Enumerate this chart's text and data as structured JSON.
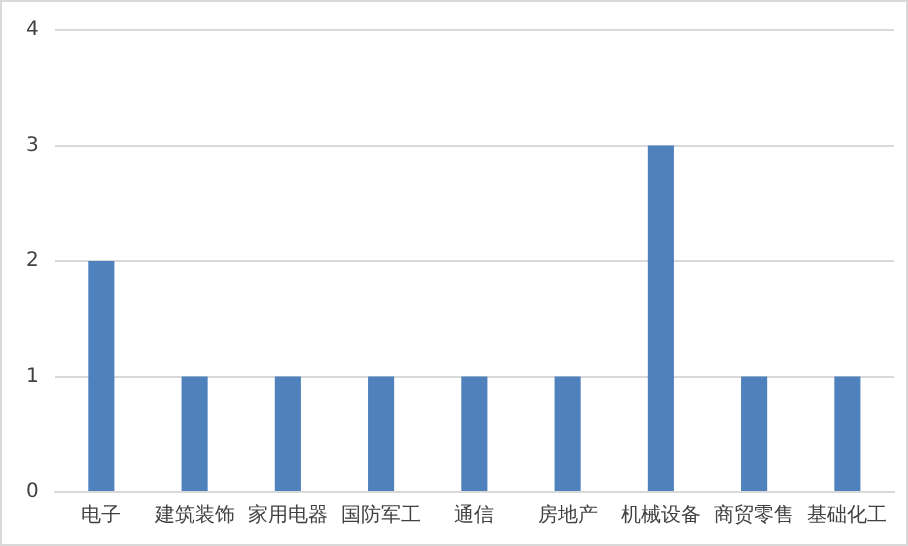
{
  "chart_data": {
    "type": "bar",
    "categories": [
      "电子",
      "建筑装饰",
      "家用电器",
      "国防军工",
      "通信",
      "房地产",
      "机械设备",
      "商贸零售",
      "基础化工"
    ],
    "values": [
      2,
      1,
      1,
      1,
      1,
      1,
      3,
      1,
      1
    ],
    "color": "#4f81bd",
    "ylim": [
      0,
      4
    ],
    "yticks": [
      0,
      1,
      2,
      3,
      4
    ],
    "grid": "y",
    "legend": false
  }
}
